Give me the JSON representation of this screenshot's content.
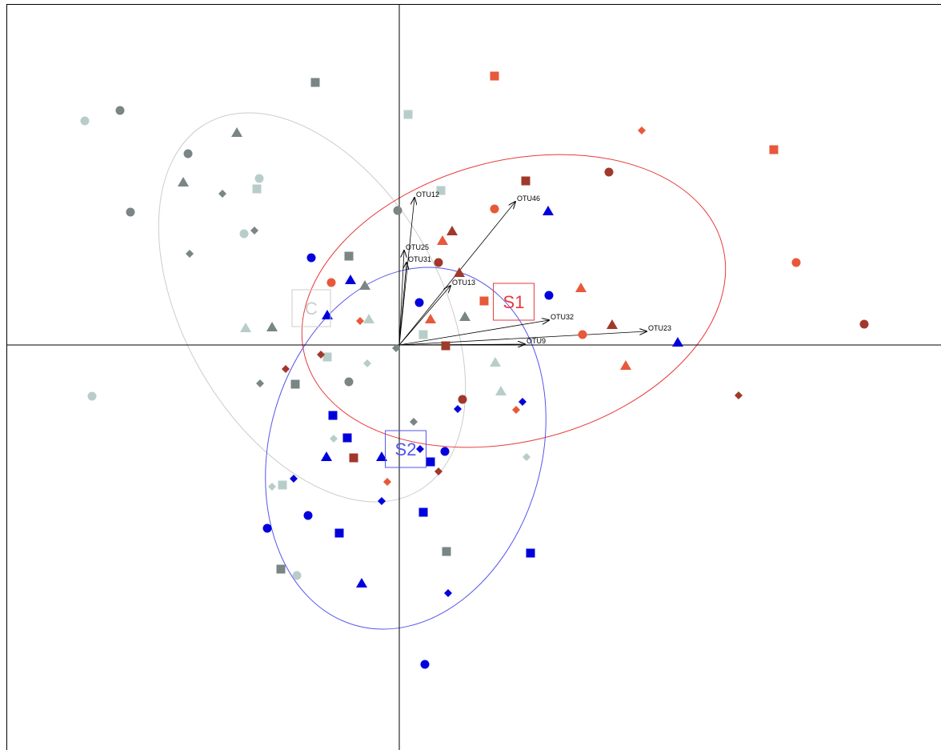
{
  "chart_data": {
    "type": "scatter",
    "xlim": [
      -4.91,
      6.77
    ],
    "ylim": [
      -5.06,
      4.26
    ],
    "series": [
      {
        "color": "#7a8585",
        "marker": "circle",
        "x": [
          -3.49,
          -2.64,
          -3.36,
          -0.02,
          -0.63
        ],
        "values": [
          2.93,
          2.39,
          1.66,
          1.68,
          -0.46
        ]
      },
      {
        "color": "#7a8585",
        "marker": "square",
        "x": [
          -1.05,
          -0.63,
          -1.3,
          0.59,
          -1.48
        ],
        "values": [
          3.28,
          1.11,
          -0.49,
          -2.58,
          -2.8
        ]
      },
      {
        "color": "#7a8585",
        "marker": "triangle",
        "x": [
          -2.03,
          -2.7,
          -0.43,
          -1.59,
          0.82
        ],
        "values": [
          2.65,
          2.03,
          0.74,
          0.22,
          0.35
        ]
      },
      {
        "color": "#7a8585",
        "marker": "diamond",
        "x": [
          -2.21,
          -1.81,
          -2.62,
          -1.74,
          0.18,
          -0.04
        ],
        "values": [
          1.89,
          1.43,
          1.14,
          -0.48,
          -0.96,
          -0.04
        ]
      },
      {
        "color": "#b8cdca",
        "marker": "circle",
        "x": [
          -3.93,
          -1.75,
          -1.94,
          -3.84,
          -1.28
        ],
        "values": [
          2.8,
          2.08,
          1.39,
          -0.64,
          -2.88
        ]
      },
      {
        "color": "#b8cdca",
        "marker": "square",
        "x": [
          0.11,
          -1.78,
          0.52,
          -0.9,
          0.3,
          -1.46
        ],
        "values": [
          2.88,
          1.95,
          1.93,
          -0.15,
          0.13,
          -1.75
        ]
      },
      {
        "color": "#b8cdca",
        "marker": "triangle",
        "x": [
          -0.38,
          -1.92,
          1.2,
          1.27
        ],
        "values": [
          0.32,
          0.21,
          -0.22,
          -0.58
        ]
      },
      {
        "color": "#b8cdca",
        "marker": "diamond",
        "x": [
          -0.4,
          -0.82,
          1.59,
          -1.59
        ],
        "values": [
          -0.23,
          -1.17,
          -1.4,
          -1.77
        ]
      },
      {
        "color": "#e8583a",
        "marker": "circle",
        "x": [
          1.19,
          -0.85,
          4.96,
          2.29
        ],
        "values": [
          1.7,
          0.78,
          1.03,
          0.13
        ]
      },
      {
        "color": "#e8583a",
        "marker": "square",
        "x": [
          1.19,
          4.68,
          1.06
        ],
        "values": [
          3.36,
          2.44,
          0.55
        ]
      },
      {
        "color": "#e8583a",
        "marker": "triangle",
        "x": [
          0.54,
          0.39,
          2.27,
          2.83
        ],
        "values": [
          1.3,
          0.32,
          0.71,
          -0.26
        ]
      },
      {
        "color": "#e8583a",
        "marker": "diamond",
        "x": [
          3.03,
          -0.49,
          1.46,
          -0.15
        ],
        "values": [
          2.68,
          0.3,
          -0.81,
          -1.71
        ]
      },
      {
        "color": "#a0392b",
        "marker": "circle",
        "x": [
          2.62,
          0.49,
          5.81,
          0.79
        ],
        "values": [
          2.16,
          1.03,
          0.26,
          -0.68
        ]
      },
      {
        "color": "#a0392b",
        "marker": "square",
        "x": [
          1.58,
          0.58,
          -0.57
        ],
        "values": [
          2.05,
          -0.01,
          -1.41
        ]
      },
      {
        "color": "#a0392b",
        "marker": "triangle",
        "x": [
          0.66,
          0.75,
          2.66
        ],
        "values": [
          1.42,
          0.9,
          0.25
        ]
      },
      {
        "color": "#a0392b",
        "marker": "diamond",
        "x": [
          4.24,
          -1.42,
          0.49,
          -0.98
        ],
        "values": [
          -0.63,
          -0.3,
          -1.58,
          -0.12
        ]
      },
      {
        "color": "#0000dd",
        "marker": "circle",
        "x": [
          -1.1,
          0.25,
          1.87,
          0.57,
          -1.14,
          -1.65,
          0.32
        ],
        "values": [
          1.09,
          0.53,
          0.62,
          -1.33,
          -2.13,
          -2.29,
          -3.99
        ]
      },
      {
        "color": "#0000dd",
        "marker": "square",
        "x": [
          -0.83,
          -0.65,
          0.39,
          0.3,
          -0.75,
          1.64
        ],
        "values": [
          -0.88,
          -1.16,
          -1.46,
          -2.09,
          -2.35,
          -2.6
        ]
      },
      {
        "color": "#0000dd",
        "marker": "triangle",
        "x": [
          1.86,
          -0.61,
          -0.9,
          3.48,
          -0.91,
          -0.22,
          -0.47
        ],
        "values": [
          1.67,
          0.81,
          0.37,
          0.03,
          -1.4,
          -1.4,
          -2.98
        ]
      },
      {
        "color": "#0000dd",
        "marker": "diamond",
        "x": [
          0.73,
          1.54,
          0.26,
          -1.32,
          -0.22,
          0.61
        ],
        "values": [
          -0.8,
          -0.71,
          -1.3,
          -1.67,
          -1.95,
          -3.1
        ]
      }
    ],
    "arrows": [
      {
        "label": "OTU12",
        "x": 0.19,
        "y": 1.84
      },
      {
        "label": "OTU46",
        "x": 1.45,
        "y": 1.79
      },
      {
        "label": "OTU25",
        "x": 0.06,
        "y": 1.18
      },
      {
        "label": "OTU31",
        "x": 0.09,
        "y": 1.03
      },
      {
        "label": "OTU13",
        "x": 0.64,
        "y": 0.74
      },
      {
        "label": "OTU32",
        "x": 1.87,
        "y": 0.31
      },
      {
        "label": "OTU9",
        "x": 1.57,
        "y": 0.01
      },
      {
        "label": "OTU23",
        "x": 3.09,
        "y": 0.17
      }
    ],
    "classes": [
      {
        "label": "C",
        "x": -1.1,
        "y": 0.46,
        "color": "#cccccc"
      },
      {
        "label": "S1",
        "x": 1.43,
        "y": 0.54,
        "color": "#e83a3a"
      },
      {
        "label": "S2",
        "x": 0.08,
        "y": -1.3,
        "color": "#5555ee"
      }
    ]
  }
}
